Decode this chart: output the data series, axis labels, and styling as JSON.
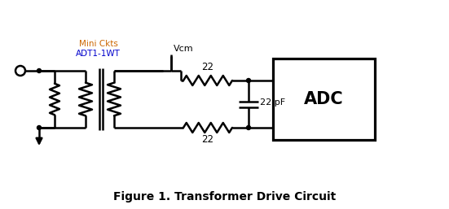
{
  "title": "Figure 1. Transformer Drive Circuit",
  "title_fontsize": 10,
  "background_color": "#ffffff",
  "line_color": "#000000",
  "line_width": 1.8,
  "text_color": "#000000",
  "label_mini_ckts": "Mini Ckts",
  "label_adt": "ADT1-1WT",
  "label_vcm": "Vcm",
  "label_r_top": "22",
  "label_r_bot": "22",
  "label_cap": "22 pF",
  "label_adc": "ADC",
  "mini_ckts_color": "#cc6600",
  "adt_color": "#0000cc"
}
